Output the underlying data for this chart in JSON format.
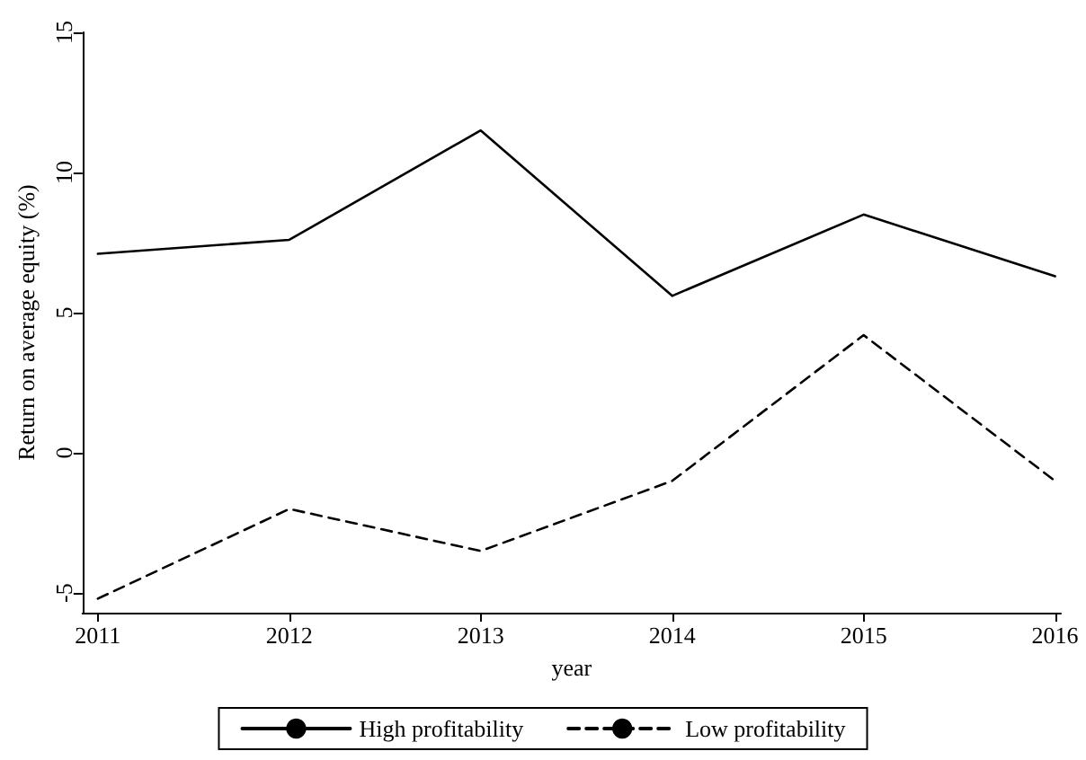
{
  "chart_data": {
    "type": "line",
    "xlabel": "year",
    "ylabel": "Return on average equity (%)",
    "x": [
      2011,
      2012,
      2013,
      2014,
      2015,
      2016
    ],
    "series": [
      {
        "name": "High profitability",
        "color": "#000000",
        "line_style": "solid",
        "values": [
          7.1,
          7.6,
          11.5,
          5.6,
          8.5,
          6.3
        ]
      },
      {
        "name": "Low profitability",
        "color": "#000000",
        "line_style": "dashed",
        "values": [
          -5.2,
          -2.0,
          -3.5,
          -1.0,
          4.2,
          -1.0
        ]
      }
    ],
    "xlim": [
      2010.92,
      2016.03
    ],
    "xticks": [
      2011,
      2012,
      2013,
      2014,
      2015,
      2016
    ],
    "ylim": [
      -5.7,
      15
    ],
    "yticks": [
      -5,
      0,
      5,
      10,
      15
    ],
    "grid": false,
    "legend": "bottom",
    "marker": "none"
  }
}
